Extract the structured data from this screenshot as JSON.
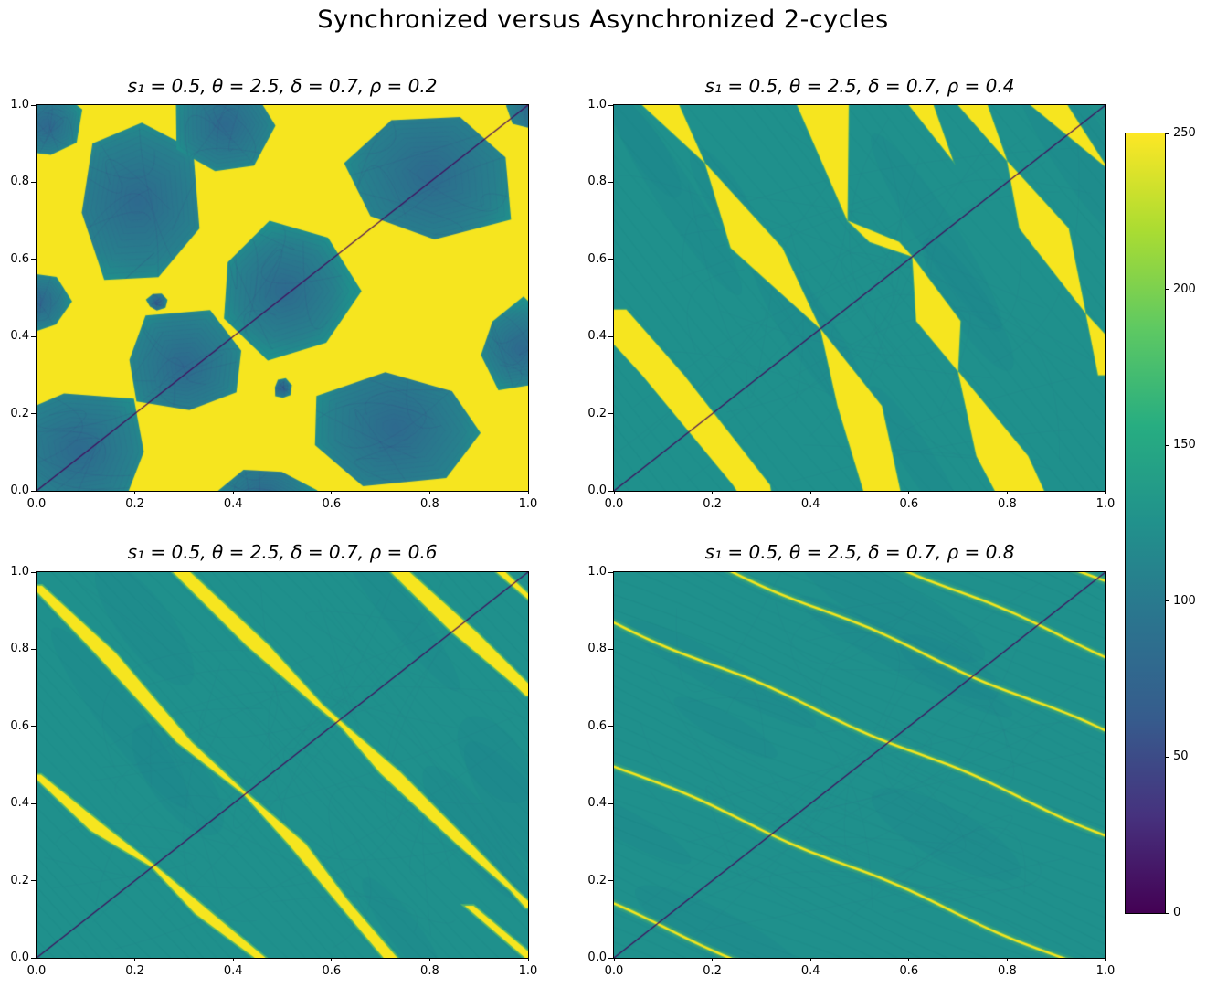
{
  "figure": {
    "title": "Synchronized versus Asynchronized 2-cycles"
  },
  "chart_data": {
    "type": "heatmap",
    "layout": "2x2 grid of heatmaps over initial conditions (x,y) in [0,1]x[0,1], shared vertical colorbar at right",
    "title": "Synchronized versus Asynchronized 2-cycles",
    "x_range": [
      0,
      1
    ],
    "y_range": [
      0,
      1
    ],
    "grid": false,
    "axes": {
      "xticks": [
        "0.0",
        "0.2",
        "0.4",
        "0.6",
        "0.8",
        "1.0"
      ],
      "yticks": [
        "0.0",
        "0.2",
        "0.4",
        "0.6",
        "0.8",
        "1.0"
      ]
    },
    "colorbar": {
      "min": 0,
      "max": 250,
      "ticks": [
        0,
        50,
        100,
        150,
        200,
        250
      ],
      "colormap": "viridis",
      "gradient": [
        "#440154",
        "#46327e",
        "#365c8d",
        "#2b748e",
        "#21918c",
        "#27ad81",
        "#5ec962",
        "#aadc32",
        "#fde725"
      ]
    },
    "colors": {
      "yellow": "#f6e51f",
      "teal": "#1f908c",
      "blob_core": "#2e6a8e",
      "blob_mid": "#27808d",
      "contour": "#3d4e8a",
      "web": "#472d7b",
      "glow": "#7ad151",
      "striation": "#14536e",
      "patch": "#1f5f8b",
      "diagonal": "#43075b"
    },
    "panels": [
      {
        "title": "s₁ = 0.5, θ = 2.5, δ = 0.7, ρ = 0.2",
        "params": {
          "s1": 0.5,
          "theta": 2.5,
          "delta": 0.7,
          "rho": 0.2
        },
        "pattern": "blobs",
        "description": "Bright yellow (value≈250) background covering ~55% of the square with a lattice of large teal hexagonal basins (value≈100-130) containing darker concentric contour webs; thin dark purple line along the main diagonal y=x.",
        "diagonal_line": true,
        "blobs": [
          [
            0.02,
            0.95,
            0.06,
            0.08
          ],
          [
            0.205,
            0.75,
            0.105,
            0.185
          ],
          [
            0.385,
            0.95,
            0.085,
            0.12
          ],
          [
            0.8,
            0.82,
            0.16,
            0.16
          ],
          [
            0.005,
            0.49,
            0.05,
            0.07
          ],
          [
            0.505,
            0.52,
            0.115,
            0.145
          ],
          [
            0.3,
            0.325,
            0.115,
            0.115
          ],
          [
            0.985,
            0.37,
            0.075,
            0.1
          ],
          [
            0.085,
            0.105,
            0.13,
            0.13
          ],
          [
            0.73,
            0.165,
            0.155,
            0.125
          ],
          [
            0.46,
            -0.02,
            0.09,
            0.08
          ],
          [
            0.245,
            0.49,
            0.018,
            0.02
          ],
          [
            0.5,
            0.265,
            0.015,
            0.022
          ],
          [
            1.01,
            0.99,
            0.05,
            0.05
          ]
        ]
      },
      {
        "title": "s₁ = 0.5, θ = 2.5, δ = 0.7, ρ = 0.4",
        "params": {
          "s1": 0.5,
          "theta": 2.5,
          "delta": 0.7,
          "rho": 0.4
        },
        "pattern": "wedges",
        "description": "Teal background with chains of yellow bow-tie wedges running top-left to bottom-right, pinching to points where they cross the dark main diagonal.",
        "diagonal_line": true,
        "striation_slope": -1.55,
        "striation_step": 0.06,
        "chains": [
          [
            [
              0.095,
              1.0,
              0.075
            ],
            [
              0.185,
              0.85,
              0.0
            ],
            [
              0.29,
              0.63,
              0.105
            ],
            [
              0.42,
              0.42,
              0.0
            ],
            [
              0.5,
              0.22,
              0.09
            ],
            [
              0.545,
              0.0,
              0.075
            ]
          ],
          [
            [
              0.425,
              1.0,
              0.105
            ],
            [
              0.475,
              0.7,
              0.0
            ],
            [
              0.55,
              0.645,
              0.06
            ],
            [
              0.607,
              0.607,
              0.0
            ],
            [
              0.66,
              0.44,
              0.09
            ],
            [
              0.7,
              0.31,
              0.0
            ],
            [
              0.79,
              0.09,
              0.105
            ],
            [
              0.825,
              0.0,
              0.1
            ]
          ],
          [
            [
              0.73,
              1.0,
              0.06
            ],
            [
              0.8,
              0.855,
              0.0
            ],
            [
              0.875,
              0.68,
              0.1
            ],
            [
              0.96,
              0.46,
              0.0
            ],
            [
              1.03,
              0.3,
              0.09
            ]
          ],
          [
            [
              0.885,
              1.0,
              0.075
            ],
            [
              1.005,
              0.835,
              0.0
            ]
          ],
          [
            [
              0.625,
              1.0,
              0.05
            ],
            [
              0.69,
              0.855,
              0.0
            ]
          ],
          [
            [
              -0.02,
              0.47,
              0.09
            ],
            [
              0.1,
              0.3,
              0.085
            ],
            [
              0.28,
              0.015,
              0.075
            ],
            [
              0.3,
              -0.05,
              0.05
            ]
          ]
        ]
      },
      {
        "title": "s₁ = 0.5, θ = 2.5, δ = 0.7, ρ = 0.6",
        "params": {
          "s1": 0.5,
          "theta": 2.5,
          "delta": 0.7,
          "rho": 0.6
        },
        "pattern": "streaks",
        "description": "Teal background with four to five narrow wavy yellow streaks of slope ≈ -1.3, pinched where they cross the dark main diagonal; faint darker striations parallel to the streaks.",
        "diagonal_line": true,
        "striation_slope": -1.33,
        "striation_step": 0.045,
        "chains": [
          [
            [
              0.0,
              0.965,
              0.022
            ],
            [
              0.14,
              0.79,
              0.042
            ],
            [
              0.3,
              0.56,
              0.03
            ],
            [
              0.425,
              0.425,
              0.008
            ],
            [
              0.53,
              0.295,
              0.035
            ],
            [
              0.62,
              0.15,
              0.025
            ],
            [
              0.72,
              0.0,
              0.028
            ]
          ],
          [
            [
              0.0,
              0.475,
              0.018
            ],
            [
              0.13,
              0.33,
              0.04
            ],
            [
              0.24,
              0.235,
              0.01
            ],
            [
              0.34,
              0.115,
              0.035
            ],
            [
              0.455,
              0.0,
              0.022
            ]
          ],
          [
            [
              0.295,
              1.0,
              0.035
            ],
            [
              0.45,
              0.81,
              0.045
            ],
            [
              0.575,
              0.655,
              0.015
            ],
            [
              0.625,
              0.6,
              0.012
            ],
            [
              0.72,
              0.48,
              0.042
            ],
            [
              0.87,
              0.295,
              0.03
            ],
            [
              0.97,
              0.175,
              0.012
            ],
            [
              1.005,
              0.13,
              0.02
            ]
          ],
          [
            [
              0.74,
              1.0,
              0.038
            ],
            [
              0.87,
              0.845,
              0.05
            ],
            [
              0.99,
              0.705,
              0.03
            ],
            [
              1.01,
              0.68,
              0.03
            ]
          ],
          [
            [
              0.945,
              1.0,
              0.018
            ],
            [
              1.01,
              0.925,
              0.012
            ]
          ],
          [
            [
              0.88,
              0.135,
              0.018
            ],
            [
              1.005,
              0.0,
              0.022
            ]
          ]
        ]
      },
      {
        "title": "s₁ = 0.5, θ = 2.5, δ = 0.7, ρ = 0.8",
        "params": {
          "s1": 0.5,
          "theta": 2.5,
          "delta": 0.7,
          "rho": 0.8
        },
        "pattern": "lines",
        "description": "Teal background with six very thin bright yellow lines of slope ≈ -0.55 with green halos, evenly fanned; dark main diagonal line and faint parallel striations.",
        "diagonal_line": true,
        "striation_slope": -0.55,
        "striation_step": 0.035,
        "line_slope": -0.55,
        "lines": [
          0.135,
          0.5,
          0.87,
          1.135,
          1.335,
          1.525
        ]
      }
    ]
  }
}
